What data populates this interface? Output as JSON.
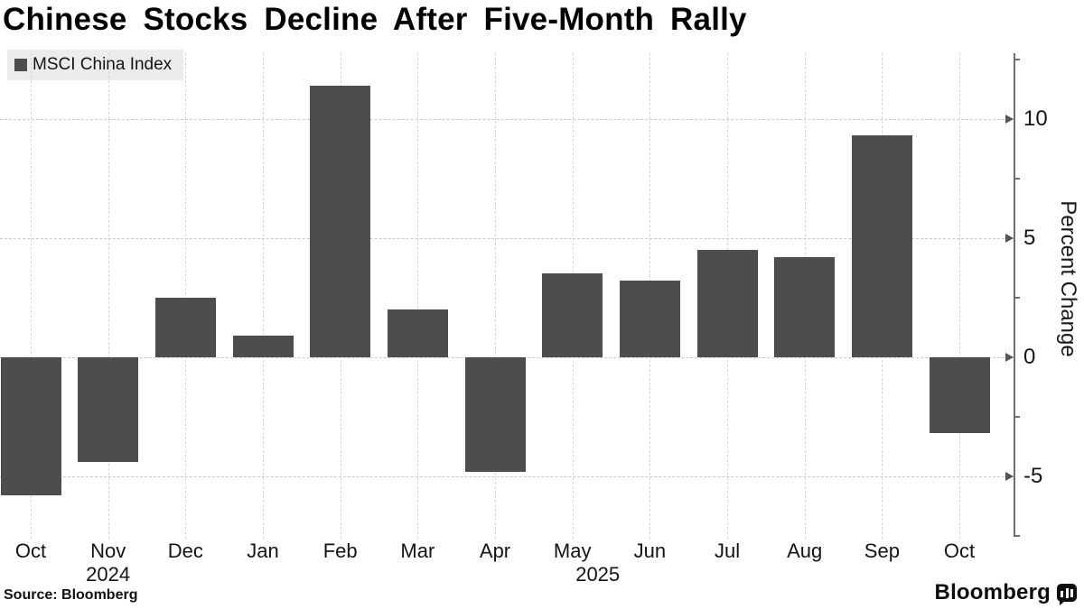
{
  "title": "Chinese Stocks Decline After Five-Month Rally",
  "legend": {
    "label": "MSCI China Index",
    "swatch_color": "#4d4d4d"
  },
  "y_axis": {
    "label": "Percent Change"
  },
  "footer": {
    "source": "Source: Bloomberg",
    "brand": "Bloomberg",
    "brand_icon": "bloomberg-terminal-icon"
  },
  "chart_data": {
    "type": "bar",
    "title": "Chinese Stocks Decline After Five-Month Rally",
    "series_name": "MSCI China Index",
    "categories": [
      "Oct",
      "Nov",
      "Dec",
      "Jan",
      "Feb",
      "Mar",
      "Apr",
      "May",
      "Jun",
      "Jul",
      "Aug",
      "Sep",
      "Oct"
    ],
    "values": [
      -5.8,
      -4.4,
      2.5,
      0.9,
      11.4,
      2.0,
      -4.8,
      3.5,
      3.2,
      4.5,
      4.2,
      9.3,
      -3.2
    ],
    "year_labels": [
      {
        "month_index": 1,
        "label": "2024"
      },
      {
        "month_index": 7,
        "label": "2025"
      }
    ],
    "xlabel": "",
    "ylabel": "Percent Change",
    "ylim": [
      -7.5,
      12.75
    ],
    "yticks_major": [
      10,
      5,
      0,
      -5
    ],
    "yticks_minor": [
      12.5,
      7.5,
      2.5,
      -2.5,
      -7.5
    ],
    "grid": true,
    "legend_position": "top-left",
    "bar_color": "#4d4d4d",
    "colors": {
      "grid": "#c9c9c9",
      "axis": "#6f6f6f",
      "legend_bg": "#ececec"
    }
  }
}
